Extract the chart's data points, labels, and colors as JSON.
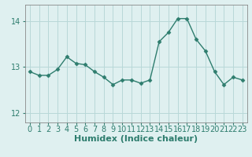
{
  "x": [
    0,
    1,
    2,
    3,
    4,
    5,
    6,
    7,
    8,
    9,
    10,
    11,
    12,
    13,
    14,
    15,
    16,
    17,
    18,
    19,
    20,
    21,
    22,
    23
  ],
  "y": [
    12.9,
    12.82,
    12.82,
    12.95,
    13.22,
    13.08,
    13.05,
    12.9,
    12.78,
    12.62,
    12.72,
    12.72,
    12.65,
    12.72,
    13.55,
    13.75,
    14.05,
    14.05,
    13.6,
    13.35,
    12.9,
    12.62,
    12.78,
    12.72
  ],
  "line_color": "#2e7d6e",
  "marker": "D",
  "marker_size": 2.5,
  "bg_color": "#dff0f0",
  "grid_color": "#b8d8d8",
  "xlabel": "Humidex (Indice chaleur)",
  "xlabel_fontsize": 8,
  "tick_color": "#2e7d6e",
  "tick_fontsize": 7,
  "yticks": [
    12,
    13,
    14
  ],
  "ylim": [
    11.8,
    14.35
  ],
  "xlim": [
    -0.5,
    23.5
  ],
  "xticks": [
    0,
    1,
    2,
    3,
    4,
    5,
    6,
    7,
    8,
    9,
    10,
    11,
    12,
    13,
    14,
    15,
    16,
    17,
    18,
    19,
    20,
    21,
    22,
    23
  ]
}
